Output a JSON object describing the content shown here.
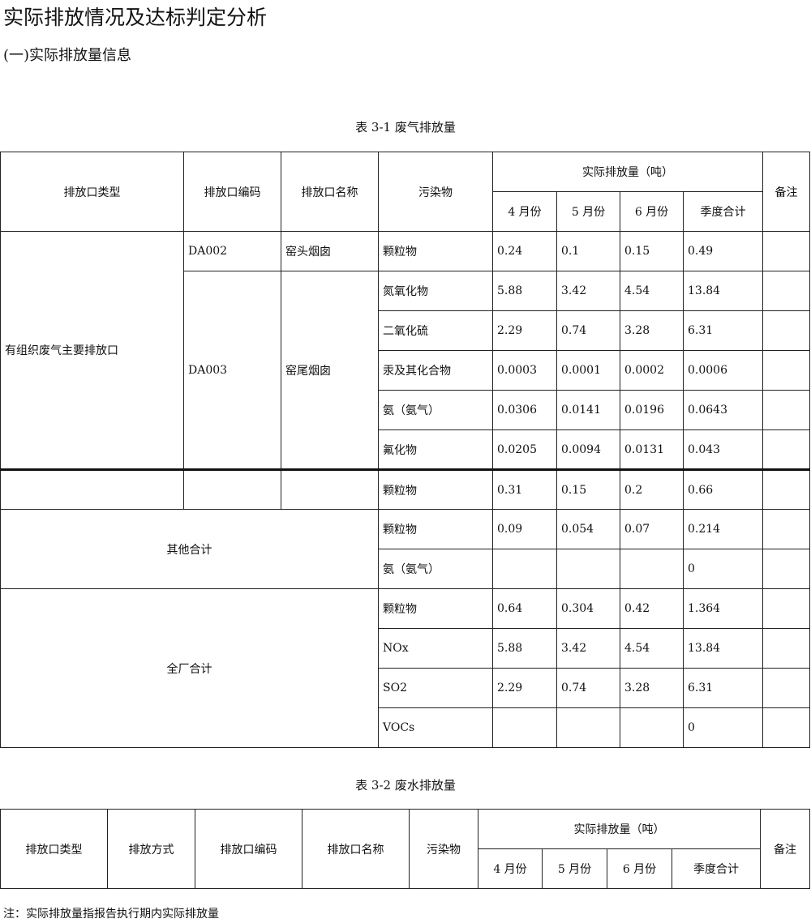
{
  "title": "实际排放情况及达标判定分析",
  "subtitle": "(一)实际排放量信息",
  "table1": {
    "caption": "表 3-1  废气排放量",
    "rows": [
      [
        {
          "t": "排放口类型",
          "rs": 2,
          "c": 1
        },
        {
          "t": "排放口编码",
          "rs": 2,
          "c": 1
        },
        {
          "t": "排放口名称",
          "rs": 2,
          "c": 1
        },
        {
          "t": "污染物",
          "rs": 2,
          "c": 1
        },
        {
          "t": "实际排放量（吨）",
          "cs": 4,
          "c": 1
        },
        {
          "t": "备注",
          "rs": 2,
          "c": 1
        }
      ],
      [
        {
          "t": "4 月份",
          "c": 1
        },
        {
          "t": "5 月份",
          "c": 1
        },
        {
          "t": "6 月份",
          "c": 1
        },
        {
          "t": "季度合计",
          "c": 1
        }
      ],
      [
        {
          "t": "有组织废气主要排放口",
          "rs": 6
        },
        {
          "t": "DA002"
        },
        {
          "t": "窑头烟囱"
        },
        {
          "t": "颗粒物"
        },
        {
          "t": "0.24"
        },
        {
          "t": "0.1"
        },
        {
          "t": "0.15"
        },
        {
          "t": "0.49"
        },
        {
          "t": ""
        }
      ],
      [
        {
          "t": "DA003",
          "rs": 5
        },
        {
          "t": "窑尾烟囱",
          "rs": 5
        },
        {
          "t": "氮氧化物"
        },
        {
          "t": "5.88"
        },
        {
          "t": "3.42"
        },
        {
          "t": "4.54"
        },
        {
          "t": "13.84"
        },
        {
          "t": ""
        }
      ],
      [
        {
          "t": "二氧化硫"
        },
        {
          "t": "2.29"
        },
        {
          "t": "0.74"
        },
        {
          "t": "3.28"
        },
        {
          "t": "6.31"
        },
        {
          "t": ""
        }
      ],
      [
        {
          "t": "汞及其化合物"
        },
        {
          "t": "0.0003"
        },
        {
          "t": "0.0001"
        },
        {
          "t": "0.0002"
        },
        {
          "t": "0.0006"
        },
        {
          "t": ""
        }
      ],
      [
        {
          "t": "氨（氨气）"
        },
        {
          "t": "0.0306"
        },
        {
          "t": "0.0141"
        },
        {
          "t": "0.0196"
        },
        {
          "t": "0.0643"
        },
        {
          "t": ""
        }
      ],
      [
        {
          "t": "氟化物"
        },
        {
          "t": "0.0205"
        },
        {
          "t": "0.0094"
        },
        {
          "t": "0.0131"
        },
        {
          "t": "0.043"
        },
        {
          "t": ""
        }
      ],
      [
        {
          "t": ""
        },
        {
          "t": ""
        },
        {
          "t": ""
        },
        {
          "t": "颗粒物"
        },
        {
          "t": "0.31"
        },
        {
          "t": "0.15"
        },
        {
          "t": "0.2"
        },
        {
          "t": "0.66"
        },
        {
          "t": ""
        }
      ],
      [
        {
          "t": "其他合计",
          "cs": 3,
          "rs": 2,
          "c": 1
        },
        {
          "t": "颗粒物"
        },
        {
          "t": "0.09"
        },
        {
          "t": "0.054"
        },
        {
          "t": "0.07"
        },
        {
          "t": "0.214"
        },
        {
          "t": ""
        }
      ],
      [
        {
          "t": "氨（氨气）"
        },
        {
          "t": ""
        },
        {
          "t": ""
        },
        {
          "t": ""
        },
        {
          "t": "0"
        },
        {
          "t": ""
        }
      ],
      [
        {
          "t": "全厂合计",
          "cs": 3,
          "rs": 4,
          "c": 1
        },
        {
          "t": "颗粒物"
        },
        {
          "t": "0.64"
        },
        {
          "t": "0.304"
        },
        {
          "t": "0.42"
        },
        {
          "t": "1.364"
        },
        {
          "t": ""
        }
      ],
      [
        {
          "t": "NOx"
        },
        {
          "t": "5.88"
        },
        {
          "t": "3.42"
        },
        {
          "t": "4.54"
        },
        {
          "t": "13.84"
        },
        {
          "t": ""
        }
      ],
      [
        {
          "t": "SO2"
        },
        {
          "t": "2.29"
        },
        {
          "t": "0.74"
        },
        {
          "t": "3.28"
        },
        {
          "t": "6.31"
        },
        {
          "t": ""
        }
      ],
      [
        {
          "t": "VOCs"
        },
        {
          "t": ""
        },
        {
          "t": ""
        },
        {
          "t": ""
        },
        {
          "t": "0"
        },
        {
          "t": ""
        }
      ]
    ]
  },
  "table2": {
    "caption": "表 3-2  废水排放量",
    "rows": [
      [
        {
          "t": "排放口类型",
          "rs": 2,
          "c": 1
        },
        {
          "t": "排放方式",
          "rs": 2,
          "c": 1
        },
        {
          "t": "排放口编码",
          "rs": 2,
          "c": 1
        },
        {
          "t": "排放口名称",
          "rs": 2,
          "c": 1
        },
        {
          "t": "污染物",
          "rs": 2,
          "c": 1
        },
        {
          "t": "实际排放量（吨）",
          "cs": 4,
          "c": 1
        },
        {
          "t": "备注",
          "rs": 2,
          "c": 1
        }
      ],
      [
        {
          "t": "4 月份",
          "c": 1
        },
        {
          "t": "5 月份",
          "c": 1
        },
        {
          "t": "6 月份",
          "c": 1
        },
        {
          "t": "季度合计",
          "c": 1
        }
      ]
    ]
  },
  "note": "注：实际排放量指报告执行期内实际排放量"
}
